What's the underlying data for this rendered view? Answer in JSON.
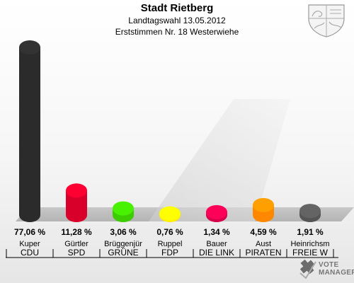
{
  "title": "Stadt Rietberg",
  "subtitle_1": "Landtagswahl 13.05.2012",
  "subtitle_2": "Erststimmen Nr. 18 Westerwiehe",
  "brand": {
    "line1": "VOTE",
    "line2": "MANAGER"
  },
  "chart_data": {
    "type": "bar",
    "title": "Stadt Rietberg",
    "categories": [
      "Kuper",
      "Gürtler",
      "Brüggenjür",
      "Ruppel",
      "Bauer",
      "Aust",
      "Heinrichsm"
    ],
    "parties": [
      "CDU",
      "SPD",
      "GRÜNE",
      "FDP",
      "DIE LINK",
      "PIRATEN",
      "FREIE W"
    ],
    "values": [
      77.06,
      11.28,
      3.06,
      0.76,
      1.34,
      4.59,
      1.91
    ],
    "value_labels": [
      "77,06 %",
      "11,28 %",
      "3,06 %",
      "0,76 %",
      "1,34 %",
      "4,59 %",
      "1,91 %"
    ],
    "colors": [
      "#2b2b2b",
      "#d8002a",
      "#3ccc00",
      "#ffee00",
      "#d6004a",
      "#ff8800",
      "#555555"
    ],
    "ylim": [
      0,
      77.06
    ],
    "grid": false
  }
}
